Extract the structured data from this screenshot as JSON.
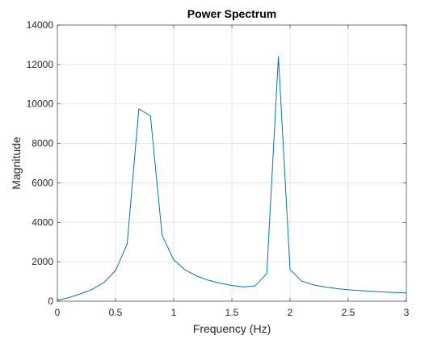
{
  "chart_data": {
    "type": "line",
    "title": "Power Spectrum",
    "xlabel": "Frequency (Hz)",
    "ylabel": "Magnitude",
    "xlim": [
      0,
      3
    ],
    "ylim": [
      0,
      14000
    ],
    "xticks": [
      0,
      0.5,
      1,
      1.5,
      2,
      2.5,
      3
    ],
    "xtick_labels": [
      "0",
      "0.5",
      "1",
      "1.5",
      "2",
      "2.5",
      "3"
    ],
    "yticks": [
      0,
      2000,
      4000,
      6000,
      8000,
      10000,
      12000,
      14000
    ],
    "ytick_labels": [
      "0",
      "2000",
      "4000",
      "6000",
      "8000",
      "10000",
      "12000",
      "14000"
    ],
    "grid": true,
    "box": true,
    "legend": "none",
    "series": [
      {
        "color": "#0072BD",
        "x": [
          0,
          0.1,
          0.2,
          0.3,
          0.4,
          0.5,
          0.6,
          0.7,
          0.8,
          0.9,
          1.0,
          1.1,
          1.2,
          1.3,
          1.4,
          1.5,
          1.6,
          1.7,
          1.8,
          1.9,
          2.0,
          2.1,
          2.2,
          2.3,
          2.4,
          2.5,
          2.6,
          2.7,
          2.8,
          2.9,
          3.0
        ],
        "y": [
          50,
          180,
          380,
          600,
          950,
          1550,
          2900,
          9750,
          9400,
          3350,
          2100,
          1580,
          1270,
          1060,
          910,
          800,
          720,
          780,
          1400,
          12400,
          1600,
          1020,
          830,
          720,
          640,
          580,
          540,
          500,
          470,
          440,
          420
        ]
      }
    ]
  }
}
